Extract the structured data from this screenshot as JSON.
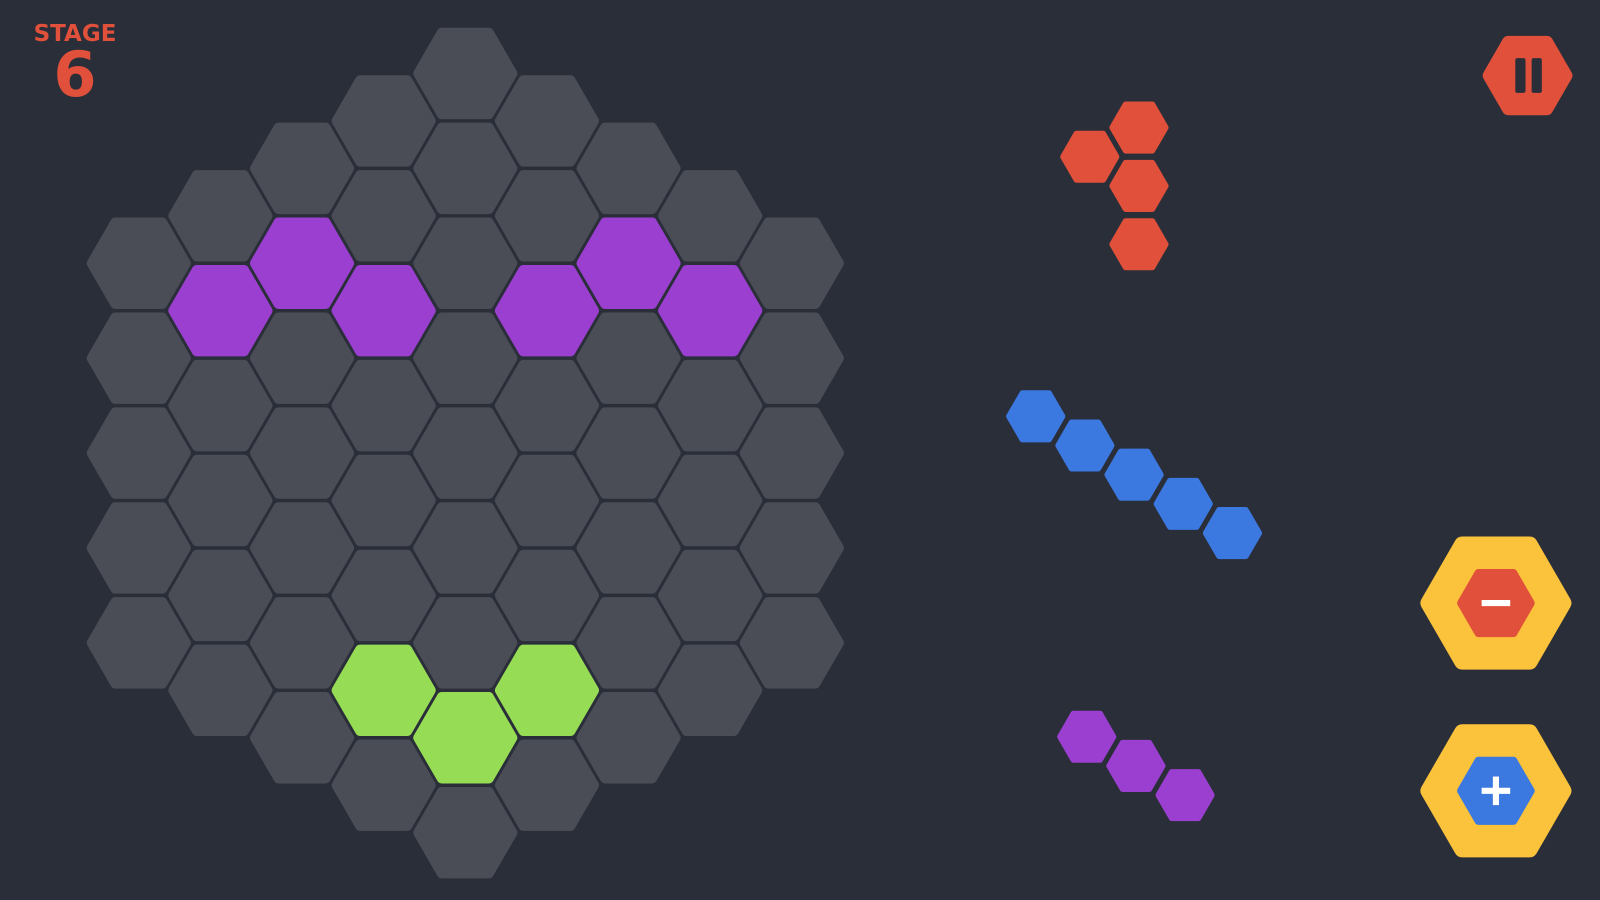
{
  "hud": {
    "stage_label": "STAGE",
    "stage_number": "6"
  },
  "colors": {
    "background": "#2a2e39",
    "empty_cell": "#4a4d56",
    "purple": "#9b3fd0",
    "green": "#96dc55",
    "red": "#e0503a",
    "blue": "#3b78e0",
    "yellow": "#fbc23c"
  },
  "board": {
    "columns": [
      [
        "empty",
        "empty",
        "empty",
        "empty",
        "empty"
      ],
      [
        "empty",
        "purple",
        "empty",
        "empty",
        "empty",
        "empty"
      ],
      [
        "empty",
        "purple",
        "empty",
        "empty",
        "empty",
        "empty",
        "empty"
      ],
      [
        "empty",
        "empty",
        "purple",
        "empty",
        "empty",
        "empty",
        "green",
        "empty"
      ],
      [
        "empty",
        "empty",
        "empty",
        "empty",
        "empty",
        "empty",
        "empty",
        "green",
        "empty"
      ],
      [
        "empty",
        "empty",
        "purple",
        "empty",
        "empty",
        "empty",
        "green",
        "empty"
      ],
      [
        "empty",
        "purple",
        "empty",
        "empty",
        "empty",
        "empty",
        "empty"
      ],
      [
        "empty",
        "purple",
        "empty",
        "empty",
        "empty",
        "empty"
      ],
      [
        "empty",
        "empty",
        "empty",
        "empty",
        "empty"
      ]
    ]
  },
  "pieces": [
    {
      "color": "red",
      "cells": [
        [
          1,
          0
        ],
        [
          0,
          1
        ],
        [
          1,
          2
        ],
        [
          1,
          4
        ]
      ]
    },
    {
      "color": "blue",
      "cells": [
        [
          0,
          0
        ],
        [
          1,
          1
        ],
        [
          2,
          2
        ],
        [
          3,
          3
        ],
        [
          4,
          4
        ]
      ]
    },
    {
      "color": "purple",
      "cells": [
        [
          0,
          0
        ],
        [
          1,
          1
        ],
        [
          2,
          2
        ]
      ]
    }
  ],
  "buttons": {
    "pause": {
      "icon": "pause-icon"
    },
    "zoom_out": {
      "icon": "minus-icon"
    },
    "zoom_in": {
      "icon": "plus-icon"
    }
  }
}
